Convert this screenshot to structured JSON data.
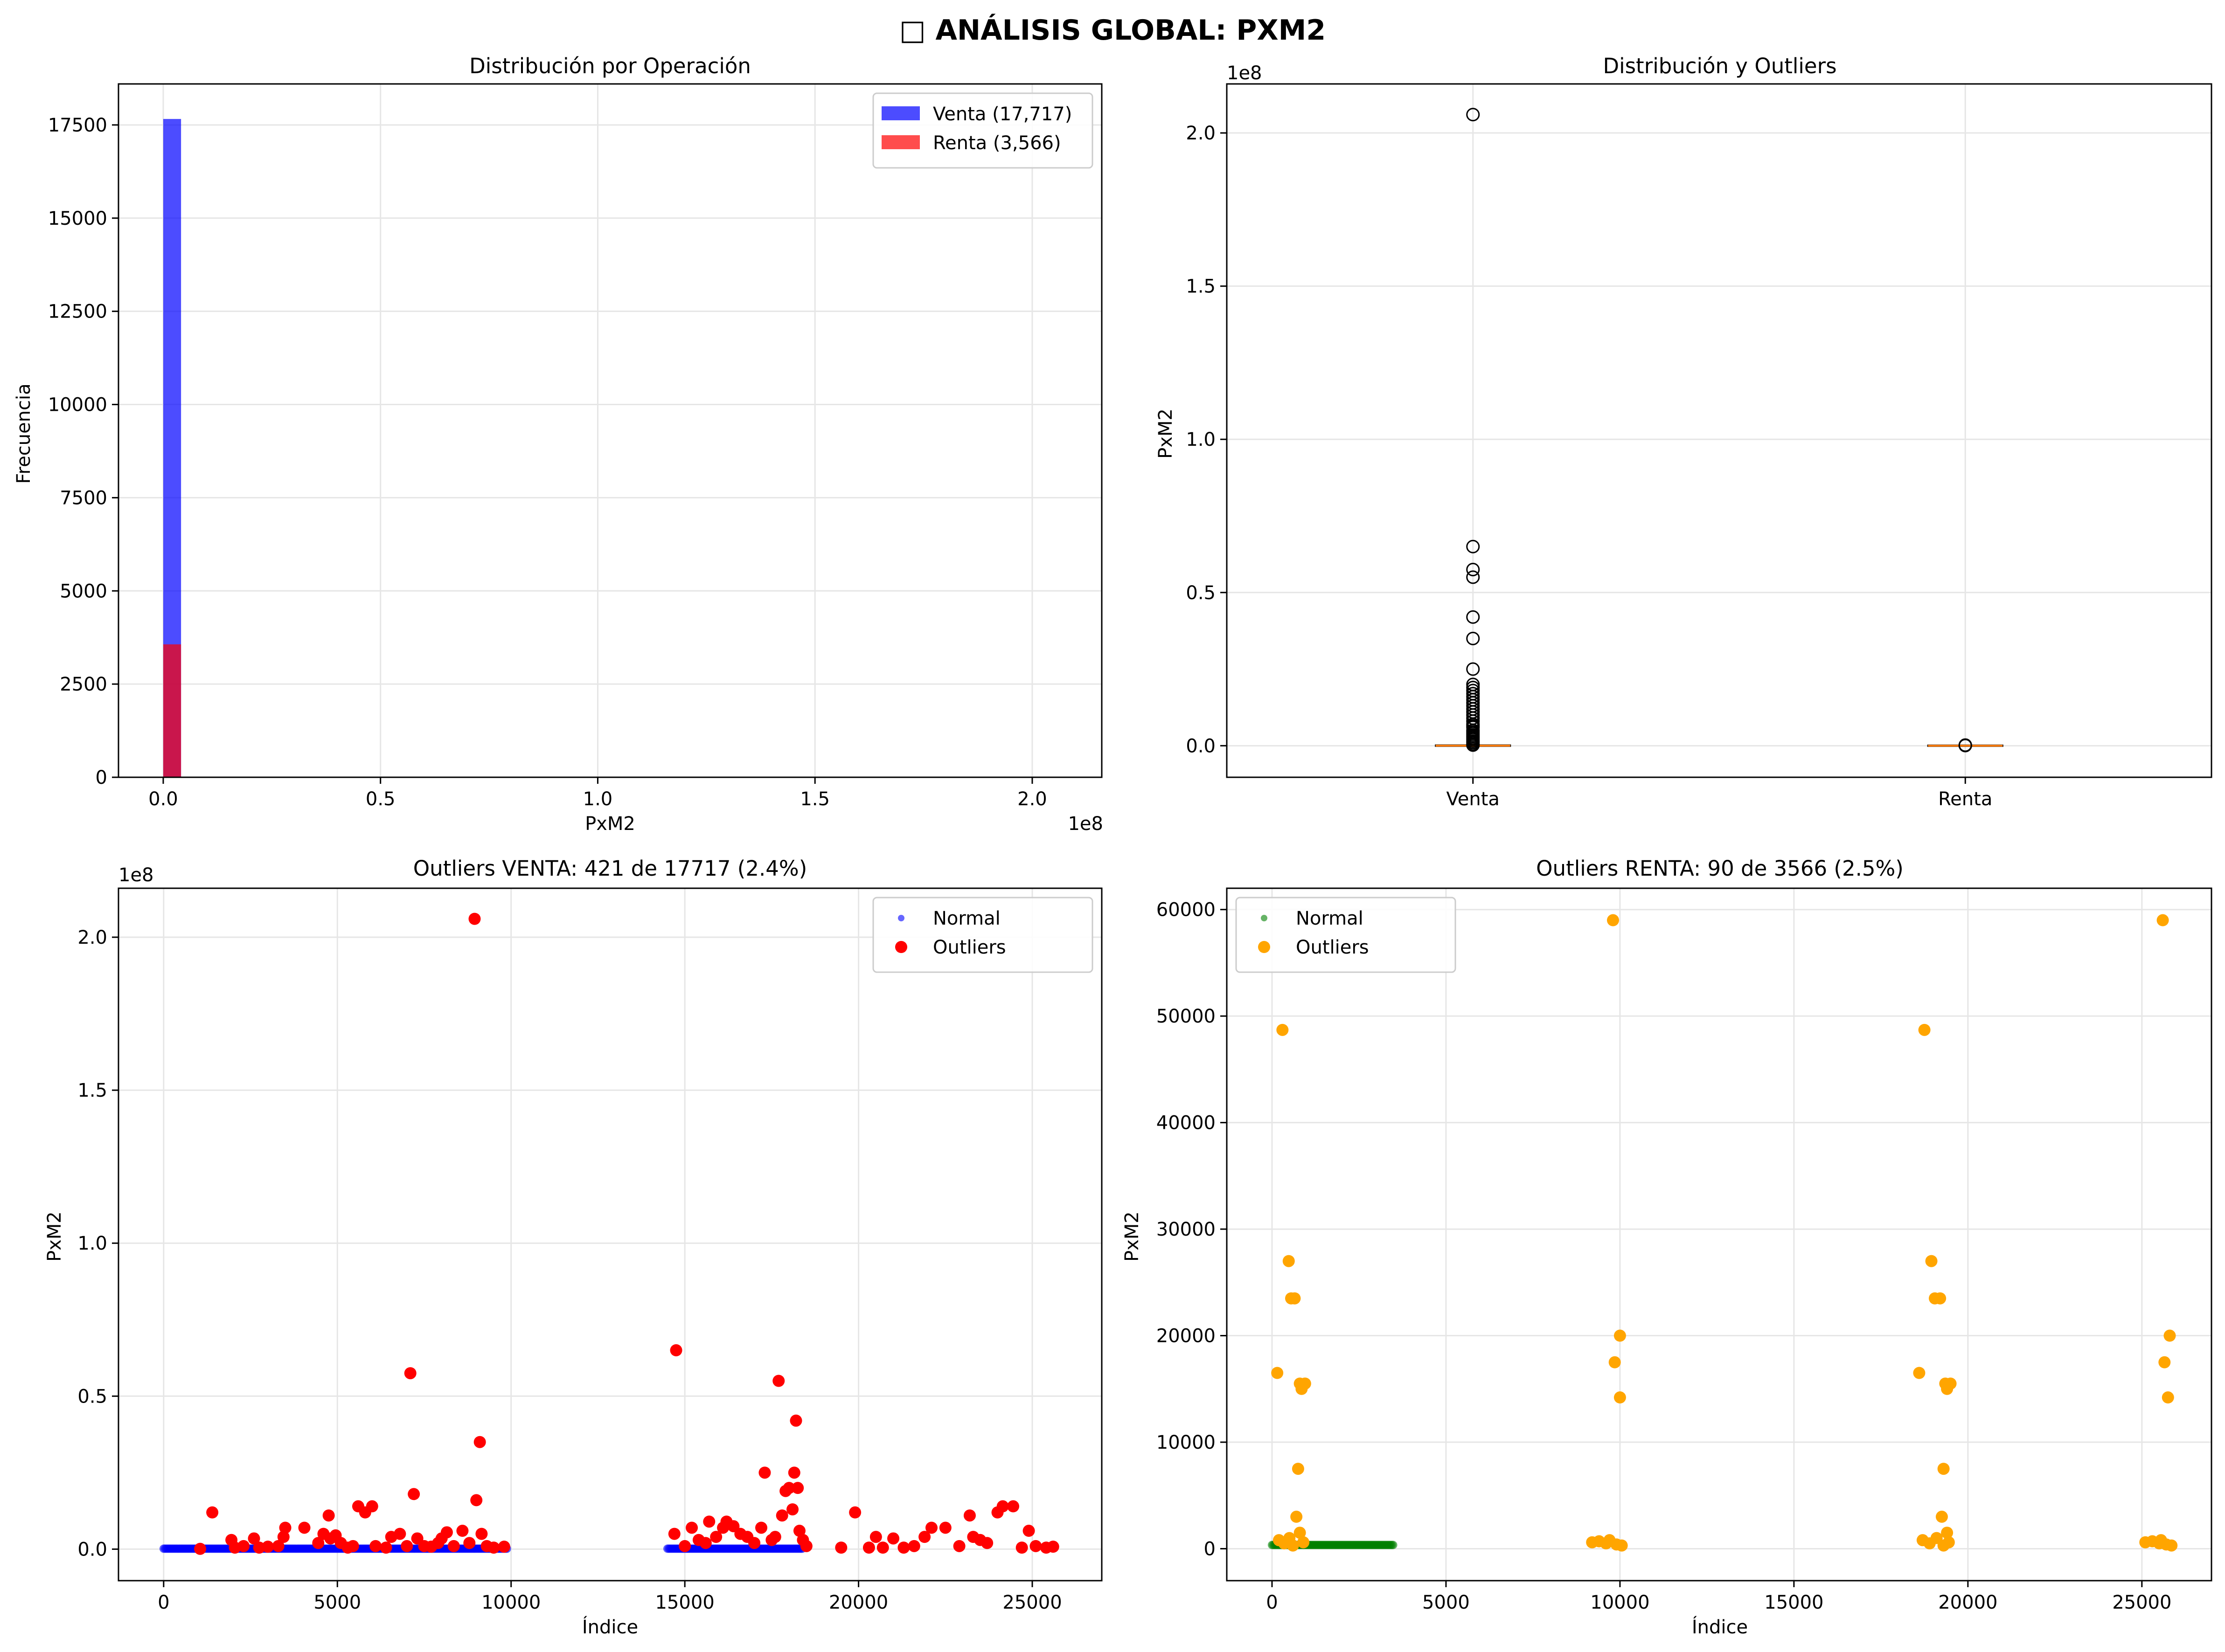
{
  "figure": {
    "title": "□ ANÁLISIS GLOBAL: PXM2",
    "colors": {
      "venta": "#0000ff",
      "renta": "#ff0000",
      "normal_renta": "#008000",
      "outliers_renta": "#ffa500",
      "median": "#ff7f0e",
      "grid": "#e6e6e6"
    }
  },
  "chart_data": [
    {
      "id": "hist",
      "type": "bar",
      "title": "Distribución por Operación",
      "xlabel": "PxM2",
      "ylabel": "Frecuencia",
      "offset_text_x": "1e8",
      "xlim": [
        -0.103,
        2.16
      ],
      "ylim": [
        0,
        18600
      ],
      "xticks": [
        0,
        0.5,
        1.0,
        1.5,
        2.0
      ],
      "xtick_labels": [
        "0.0",
        "0.5",
        "1.0",
        "1.5",
        "2.0"
      ],
      "yticks": [
        0,
        2500,
        5000,
        7500,
        10000,
        12500,
        15000,
        17500
      ],
      "ytick_labels": [
        "0",
        "2500",
        "5000",
        "7500",
        "10000",
        "12500",
        "15000",
        "17500"
      ],
      "grid": true,
      "legend_position": "top-right",
      "series": [
        {
          "name": "Venta (17,717)",
          "color": "#0000ff",
          "bins": [
            [
              0.0,
              0.041,
              17660
            ]
          ]
        },
        {
          "name": "Renta (3,566)",
          "color": "#ff0000",
          "bins": [
            [
              0.0,
              0.041,
              3566
            ]
          ]
        }
      ]
    },
    {
      "id": "box",
      "type": "box",
      "title": "Distribución y Outliers",
      "ylabel": "PxM2",
      "offset_text_y": "1e8",
      "categories": [
        "Venta",
        "Renta"
      ],
      "ylim": [
        -0.103,
        2.16
      ],
      "yticks": [
        0,
        0.5,
        1.0,
        1.5,
        2.0
      ],
      "ytick_labels": [
        "0.0",
        "0.5",
        "1.0",
        "1.5",
        "2.0"
      ],
      "grid": true,
      "boxes": [
        {
          "name": "Venta",
          "median": 0.0002,
          "q1": 0.0001,
          "q3": 0.0004,
          "fliers": [
            2.06,
            0.65,
            0.575,
            0.55,
            0.42,
            0.35,
            0.25,
            0.2,
            0.19,
            0.18,
            0.17,
            0.16,
            0.15,
            0.14,
            0.13,
            0.12,
            0.11,
            0.1,
            0.09,
            0.08,
            0.07,
            0.065,
            0.06,
            0.05,
            0.045,
            0.04,
            0.035,
            0.03,
            0.025,
            0.02,
            0.015,
            0.01,
            0.005,
            0.002
          ]
        },
        {
          "name": "Renta",
          "median": 0.0,
          "q1": 0.0,
          "q3": 0.0,
          "fliers": [
            0.002,
            0.0015,
            0.001,
            0.0005
          ]
        }
      ]
    },
    {
      "id": "venta",
      "type": "scatter",
      "title": "Outliers VENTA: 421 de 17717 (2.4%)",
      "xlabel": "Índice",
      "ylabel": "PxM2",
      "offset_text_y": "1e8",
      "xlim": [
        -1300,
        27000
      ],
      "ylim": [
        -0.103,
        2.16
      ],
      "xticks": [
        0,
        5000,
        10000,
        15000,
        20000,
        25000
      ],
      "xtick_labels": [
        "0",
        "5000",
        "10000",
        "15000",
        "20000",
        "25000"
      ],
      "yticks": [
        0,
        0.5,
        1.0,
        1.5,
        2.0
      ],
      "ytick_labels": [
        "0.0",
        "0.5",
        "1.0",
        "1.5",
        "2.0"
      ],
      "grid": true,
      "legend_position": "top-right",
      "series": [
        {
          "name": "Normal",
          "color": "#0000ff",
          "segments": [
            [
              0,
              9900
            ],
            [
              14500,
              18400
            ]
          ]
        },
        {
          "name": "Outliers",
          "color": "#ff0000",
          "points": [
            [
              1050,
              0.001
            ],
            [
              1400,
              0.12
            ],
            [
              1950,
              0.03
            ],
            [
              2050,
              0.005
            ],
            [
              2300,
              0.01
            ],
            [
              2600,
              0.035
            ],
            [
              2750,
              0.005
            ],
            [
              3000,
              0.008
            ],
            [
              3300,
              0.01
            ],
            [
              3450,
              0.04
            ],
            [
              3500,
              0.07
            ],
            [
              4050,
              0.07
            ],
            [
              4450,
              0.02
            ],
            [
              4600,
              0.05
            ],
            [
              4750,
              0.11
            ],
            [
              4800,
              0.035
            ],
            [
              4950,
              0.045
            ],
            [
              5100,
              0.02
            ],
            [
              5300,
              0.005
            ],
            [
              5450,
              0.01
            ],
            [
              5600,
              0.14
            ],
            [
              5800,
              0.12
            ],
            [
              6000,
              0.14
            ],
            [
              6100,
              0.01
            ],
            [
              6400,
              0.005
            ],
            [
              6550,
              0.04
            ],
            [
              6800,
              0.05
            ],
            [
              7000,
              0.01
            ],
            [
              7100,
              0.575
            ],
            [
              7200,
              0.18
            ],
            [
              7300,
              0.035
            ],
            [
              7500,
              0.01
            ],
            [
              7700,
              0.008
            ],
            [
              7900,
              0.02
            ],
            [
              8000,
              0.035
            ],
            [
              8150,
              0.055
            ],
            [
              8350,
              0.01
            ],
            [
              8600,
              0.06
            ],
            [
              8800,
              0.02
            ],
            [
              8950,
              2.06
            ],
            [
              9000,
              0.16
            ],
            [
              9100,
              0.35
            ],
            [
              9150,
              0.05
            ],
            [
              9300,
              0.01
            ],
            [
              9500,
              0.005
            ],
            [
              9800,
              0.008
            ],
            [
              14700,
              0.05
            ],
            [
              14750,
              0.65
            ],
            [
              15000,
              0.01
            ],
            [
              15200,
              0.07
            ],
            [
              15400,
              0.03
            ],
            [
              15600,
              0.02
            ],
            [
              15700,
              0.09
            ],
            [
              15900,
              0.04
            ],
            [
              16100,
              0.07
            ],
            [
              16200,
              0.09
            ],
            [
              16400,
              0.075
            ],
            [
              16600,
              0.05
            ],
            [
              16800,
              0.04
            ],
            [
              17000,
              0.02
            ],
            [
              17200,
              0.07
            ],
            [
              17300,
              0.25
            ],
            [
              17500,
              0.03
            ],
            [
              17600,
              0.04
            ],
            [
              17700,
              0.55
            ],
            [
              17800,
              0.11
            ],
            [
              17900,
              0.19
            ],
            [
              18000,
              0.2
            ],
            [
              18100,
              0.13
            ],
            [
              18150,
              0.25
            ],
            [
              18200,
              0.42
            ],
            [
              18250,
              0.2
            ],
            [
              18300,
              0.06
            ],
            [
              18400,
              0.03
            ],
            [
              18500,
              0.01
            ],
            [
              19500,
              0.005
            ],
            [
              19900,
              0.12
            ],
            [
              20300,
              0.005
            ],
            [
              20500,
              0.04
            ],
            [
              20700,
              0.005
            ],
            [
              21000,
              0.035
            ],
            [
              21300,
              0.005
            ],
            [
              21600,
              0.01
            ],
            [
              21900,
              0.04
            ],
            [
              22100,
              0.07
            ],
            [
              22500,
              0.07
            ],
            [
              22900,
              0.01
            ],
            [
              23200,
              0.11
            ],
            [
              23300,
              0.04
            ],
            [
              23500,
              0.03
            ],
            [
              23700,
              0.02
            ],
            [
              24000,
              0.12
            ],
            [
              24150,
              0.14
            ],
            [
              24450,
              0.14
            ],
            [
              24700,
              0.005
            ],
            [
              24900,
              0.06
            ],
            [
              25100,
              0.01
            ],
            [
              25400,
              0.005
            ],
            [
              25600,
              0.008
            ]
          ]
        }
      ]
    },
    {
      "id": "renta",
      "type": "scatter",
      "title": "Outliers RENTA: 90 de 3566 (2.5%)",
      "xlabel": "Índice",
      "ylabel": "PxM2",
      "xlim": [
        -1300,
        27000
      ],
      "ylim": [
        -3000,
        62000
      ],
      "xticks": [
        0,
        5000,
        10000,
        15000,
        20000,
        25000
      ],
      "xtick_labels": [
        "0",
        "5000",
        "10000",
        "15000",
        "20000",
        "25000"
      ],
      "yticks": [
        0,
        10000,
        20000,
        30000,
        40000,
        50000,
        60000
      ],
      "ytick_labels": [
        "0",
        "10000",
        "20000",
        "30000",
        "40000",
        "50000",
        "60000"
      ],
      "grid": true,
      "legend_position": "top-left",
      "series": [
        {
          "name": "Normal",
          "color": "#008000",
          "segments": [
            [
              0,
              3500
            ]
          ]
        },
        {
          "name": "Outliers",
          "color": "#ffa500",
          "points": [
            [
              150,
              16500
            ],
            [
              300,
              48700
            ],
            [
              480,
              27000
            ],
            [
              550,
              23500
            ],
            [
              650,
              23500
            ],
            [
              700,
              3000
            ],
            [
              750,
              7500
            ],
            [
              800,
              15500
            ],
            [
              850,
              15000
            ],
            [
              950,
              15500
            ],
            [
              200,
              800
            ],
            [
              350,
              500
            ],
            [
              500,
              1000
            ],
            [
              600,
              300
            ],
            [
              800,
              1500
            ],
            [
              900,
              600
            ],
            [
              9200,
              600
            ],
            [
              9400,
              700
            ],
            [
              9600,
              500
            ],
            [
              9800,
              59000
            ],
            [
              9850,
              17500
            ],
            [
              10000,
              20000
            ],
            [
              10000,
              14200
            ],
            [
              9900,
              400
            ],
            [
              10050,
              300
            ],
            [
              9700,
              800
            ],
            [
              18600,
              16500
            ],
            [
              18750,
              48700
            ],
            [
              18950,
              27000
            ],
            [
              19050,
              23500
            ],
            [
              19200,
              23500
            ],
            [
              19250,
              3000
            ],
            [
              19300,
              7500
            ],
            [
              19350,
              15500
            ],
            [
              19400,
              15000
            ],
            [
              19500,
              15500
            ],
            [
              18700,
              800
            ],
            [
              18900,
              500
            ],
            [
              19100,
              1000
            ],
            [
              19300,
              300
            ],
            [
              19400,
              1500
            ],
            [
              19450,
              600
            ],
            [
              25100,
              600
            ],
            [
              25300,
              700
            ],
            [
              25500,
              500
            ],
            [
              25600,
              59000
            ],
            [
              25650,
              17500
            ],
            [
              25800,
              20000
            ],
            [
              25750,
              14200
            ],
            [
              25700,
              400
            ],
            [
              25850,
              300
            ],
            [
              25550,
              800
            ]
          ]
        }
      ]
    }
  ]
}
